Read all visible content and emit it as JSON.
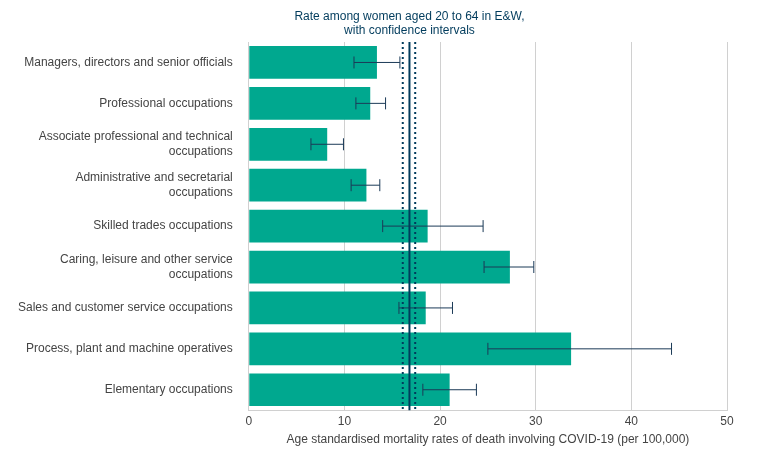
{
  "chart_data": {
    "type": "bar",
    "orientation": "horizontal",
    "categories": [
      "Managers, directors and senior officials",
      "Professional occupations",
      "Associate professional and technical\noccupations",
      "Administrative and secretarial\noccupations",
      "Skilled trades occupations",
      "Caring, leisure and other service\noccupations",
      "Sales and customer service occupations",
      "Process, plant and machine operatives",
      "Elementary occupations"
    ],
    "values": [
      13.4,
      12.7,
      8.2,
      12.3,
      18.7,
      27.3,
      18.5,
      33.7,
      21.0
    ],
    "ci_low": [
      11.0,
      11.2,
      6.5,
      10.7,
      14.0,
      24.6,
      15.7,
      25.0,
      18.2
    ],
    "ci_high": [
      15.8,
      14.3,
      9.9,
      13.7,
      24.5,
      29.8,
      21.3,
      44.2,
      23.8
    ],
    "color": "#00a88f",
    "reference": {
      "label": "Rate among women aged 20 to 64 in E&W,\nwith confidence intervals",
      "value": 16.8,
      "ci_low": 16.1,
      "ci_high": 17.4
    },
    "x_label": "Age standardised mortality rates of death involving COVID-19 (per 100,000)",
    "xlim": [
      0,
      50
    ],
    "xticks": [
      0,
      10,
      20,
      30,
      40,
      50
    ],
    "grid": true
  }
}
